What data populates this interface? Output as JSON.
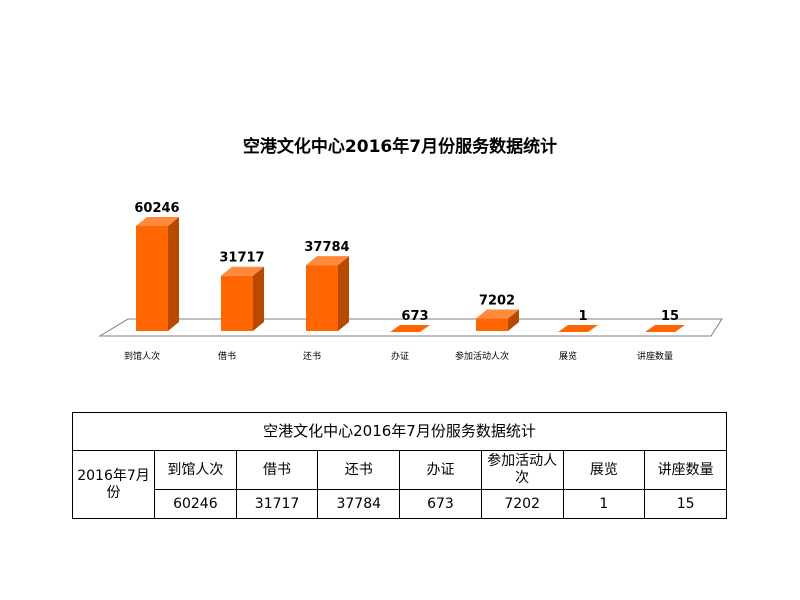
{
  "chart_data": {
    "type": "bar",
    "title": "空港文化中心2016年7月份服务数据统计",
    "categories": [
      "到馆人次",
      "借书",
      "还书",
      "办证",
      "参加活动人次",
      "展览",
      "讲座数量"
    ],
    "values": [
      60246,
      31717,
      37784,
      673,
      7202,
      1,
      15
    ],
    "value_labels": [
      "60246",
      "31717",
      "37784",
      "673",
      "7202",
      "1",
      "15"
    ],
    "bar_color": "#FF6600",
    "grid": false,
    "legend": "none"
  },
  "table": {
    "title": "空港文化中心2016年7月份服务数据统计",
    "row_header": "2016年7月份",
    "headers": [
      "到馆人次",
      "借书",
      "还书",
      "办证",
      "参加活动人次",
      "展览",
      "讲座数量"
    ],
    "values": [
      "60246",
      "31717",
      "37784",
      "673",
      "7202",
      "1",
      "15"
    ]
  }
}
